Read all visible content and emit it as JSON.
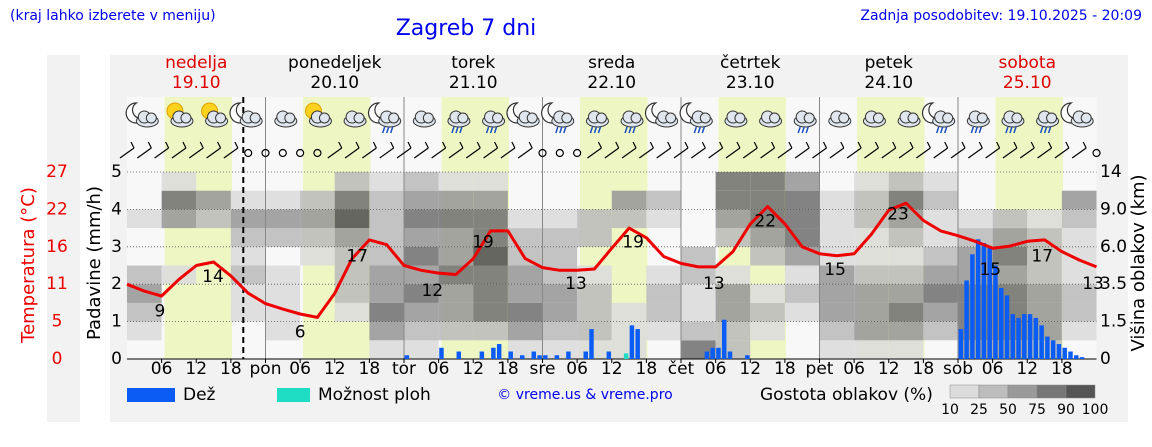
{
  "chart_data": {
    "type": "meteogram",
    "title": "Zagreb 7 dni",
    "location_hint": "(kraj lahko izberete v meniju)",
    "updated": "Zadnja posodobitev: 19.10.2025 - 20:09",
    "credit": "© vreme.us & vreme.pro",
    "days": [
      {
        "name": "nedelja",
        "date": "19.10",
        "color": "#e00000"
      },
      {
        "name": "ponedeljek",
        "date": "20.10",
        "color": "#000000"
      },
      {
        "name": "torek",
        "date": "21.10",
        "color": "#000000"
      },
      {
        "name": "sreda",
        "date": "22.10",
        "color": "#000000"
      },
      {
        "name": "četrtek",
        "date": "23.10",
        "color": "#000000"
      },
      {
        "name": "petek",
        "date": "24.10",
        "color": "#000000"
      },
      {
        "name": "sobota",
        "date": "25.10",
        "color": "#e00000"
      }
    ],
    "xlim": [
      0,
      168
    ],
    "xticks": [
      {
        "value": 6,
        "label": "06"
      },
      {
        "value": 12,
        "label": "12"
      },
      {
        "value": 18,
        "label": "18"
      },
      {
        "value": 24,
        "label": "pon"
      },
      {
        "value": 30,
        "label": "06"
      },
      {
        "value": 36,
        "label": "12"
      },
      {
        "value": 42,
        "label": "18"
      },
      {
        "value": 48,
        "label": "tor"
      },
      {
        "value": 54,
        "label": "06"
      },
      {
        "value": 60,
        "label": "12"
      },
      {
        "value": 66,
        "label": "18"
      },
      {
        "value": 72,
        "label": "sre"
      },
      {
        "value": 78,
        "label": "06"
      },
      {
        "value": 84,
        "label": "12"
      },
      {
        "value": 90,
        "label": "18"
      },
      {
        "value": 96,
        "label": "čet"
      },
      {
        "value": 102,
        "label": "06"
      },
      {
        "value": 108,
        "label": "12"
      },
      {
        "value": 114,
        "label": "18"
      },
      {
        "value": 120,
        "label": "pet"
      },
      {
        "value": 126,
        "label": "06"
      },
      {
        "value": 132,
        "label": "12"
      },
      {
        "value": 138,
        "label": "18"
      },
      {
        "value": 144,
        "label": "sob"
      },
      {
        "value": 150,
        "label": "06"
      },
      {
        "value": 156,
        "label": "12"
      },
      {
        "value": 162,
        "label": "18"
      }
    ],
    "now": 20.15,
    "daylight": [
      [
        6.5,
        18.2
      ],
      [
        30.5,
        42.2
      ],
      [
        54.5,
        66.2
      ],
      [
        78.5,
        90.2
      ],
      [
        102.5,
        114.2
      ],
      [
        126.5,
        138.2
      ],
      [
        150.5,
        162.2
      ]
    ],
    "ylabel": "Padavine (mm/h)",
    "ylim": [
      0,
      5
    ],
    "yticks": [
      0,
      1,
      2,
      3,
      4,
      5
    ],
    "grid": true,
    "series": [
      {
        "name": "Dež",
        "color": "#0a5cf5",
        "x": [
          48,
          54,
          57,
          61,
          63,
          64,
          66,
          68,
          70,
          71,
          72,
          74,
          76,
          79,
          80,
          83,
          87,
          88,
          100,
          101,
          102,
          103,
          104,
          107,
          144,
          145,
          146,
          147,
          148,
          149,
          150,
          151,
          152,
          153,
          154,
          155,
          156,
          157,
          158,
          159,
          160,
          161,
          162,
          163,
          164,
          165
        ],
        "values": [
          0.1,
          0.3,
          0.2,
          0.2,
          0.3,
          0.4,
          0.2,
          0.1,
          0.2,
          0.1,
          0.1,
          0.1,
          0.2,
          0.2,
          0.8,
          0.2,
          0.9,
          0.8,
          0.2,
          0.3,
          0.3,
          1.05,
          0.2,
          0.1,
          0.8,
          2.1,
          2.8,
          3.2,
          3.1,
          3.0,
          2.5,
          1.9,
          1.7,
          1.2,
          1.1,
          1.2,
          1.2,
          1.1,
          0.9,
          0.6,
          0.5,
          0.4,
          0.3,
          0.2,
          0.1,
          0.05
        ]
      },
      {
        "name": "Možnost ploh",
        "color": "#1fdcc4",
        "x": [
          86,
          157,
          158,
          159
        ],
        "values": [
          0.15,
          0.9,
          0.6,
          0.3
        ]
      }
    ],
    "temperature": {
      "label": "Temperatura (°C)",
      "color": "#ee0000",
      "lim": [
        0,
        27
      ],
      "ticks": [
        0,
        {
          "value": 5.4,
          "label": "5"
        },
        {
          "value": 10.8,
          "label": "11"
        },
        {
          "value": 16.2,
          "label": "16"
        },
        {
          "value": 21.6,
          "label": "22"
        },
        27
      ],
      "x": [
        0,
        3,
        6,
        9,
        12,
        15,
        18,
        21,
        24,
        27,
        30,
        33,
        36,
        39,
        42,
        45,
        48,
        51,
        54,
        57,
        60,
        63,
        66,
        69,
        72,
        75,
        78,
        81,
        84,
        87,
        90,
        93,
        96,
        99,
        102,
        105,
        108,
        111,
        114,
        117,
        120,
        123,
        126,
        129,
        132,
        135,
        138,
        141,
        144,
        147,
        150,
        153,
        156,
        159,
        162,
        165,
        168
      ],
      "values": [
        10.8,
        9.8,
        9.1,
        11.5,
        13.5,
        14.0,
        12.0,
        9.5,
        8.0,
        7.2,
        6.5,
        6.0,
        9.5,
        14.5,
        17.2,
        16.5,
        13.5,
        12.8,
        12.4,
        12.2,
        14.5,
        18.5,
        18.5,
        14.5,
        13.2,
        12.8,
        12.8,
        13.0,
        16.0,
        18.9,
        17.5,
        14.8,
        13.8,
        13.3,
        13.3,
        15.5,
        19.5,
        22.0,
        19.5,
        16.2,
        15.2,
        14.9,
        15.2,
        18.0,
        21.5,
        22.5,
        20.0,
        18.5,
        17.8,
        17.0,
        16.0,
        16.3,
        17.0,
        17.2,
        15.5,
        14.3,
        13.3
      ],
      "labels": {
        "x": [
          5.7,
          14.9,
          30,
          39.9,
          52.9,
          61.7,
          77.8,
          87.7,
          101.7,
          110.6,
          122.7,
          133.6,
          149.6,
          158.6,
          167.4
        ],
        "values": [
          9,
          14,
          6,
          17,
          12,
          19,
          13,
          19,
          13,
          22,
          15,
          23,
          15,
          17,
          13
        ]
      }
    },
    "clouds": {
      "label": "Višina oblakov (km)",
      "legend_title": "Gostota oblakov (%)",
      "lim": [
        0,
        14
      ],
      "ticks": [
        0,
        1.5,
        3.5,
        {
          "value": 6,
          "label": "6.0"
        },
        {
          "value": 9,
          "label": "9.0"
        },
        14
      ],
      "levels": [
        0,
        0.75,
        1.5,
        2.5,
        3.5,
        4.75,
        6,
        7.5,
        9,
        11.5,
        14
      ],
      "x": [
        0,
        6,
        12,
        18,
        24,
        30,
        36,
        42,
        48,
        54,
        60,
        66,
        72,
        78,
        84,
        90,
        96,
        102,
        108,
        114,
        120,
        126,
        132,
        138,
        144,
        150,
        156,
        162,
        168
      ],
      "density": [
        [
          0,
          10,
          25,
          50,
          25,
          0,
          0,
          10,
          0,
          0
        ],
        [
          0,
          0,
          0,
          0,
          10,
          0,
          0,
          50,
          75,
          10
        ],
        [
          0,
          0,
          0,
          0,
          0,
          0,
          0,
          25,
          50,
          0
        ],
        [
          0,
          0,
          10,
          10,
          25,
          10,
          25,
          50,
          10,
          0
        ],
        [
          0,
          10,
          10,
          10,
          10,
          0,
          25,
          50,
          10,
          0
        ],
        [
          0,
          0,
          0,
          0,
          0,
          10,
          25,
          50,
          25,
          0
        ],
        [
          0,
          0,
          10,
          25,
          25,
          25,
          50,
          90,
          75,
          25
        ],
        [
          10,
          50,
          75,
          50,
          50,
          25,
          25,
          25,
          25,
          10
        ],
        [
          10,
          25,
          50,
          75,
          50,
          75,
          50,
          75,
          50,
          25
        ],
        [
          0,
          25,
          50,
          50,
          75,
          50,
          50,
          75,
          50,
          10
        ],
        [
          0,
          25,
          75,
          75,
          75,
          90,
          75,
          75,
          50,
          10
        ],
        [
          10,
          50,
          75,
          50,
          50,
          25,
          25,
          10,
          0,
          0
        ],
        [
          10,
          25,
          50,
          50,
          25,
          25,
          25,
          10,
          0,
          0
        ],
        [
          10,
          25,
          25,
          25,
          10,
          0,
          25,
          25,
          0,
          0
        ],
        [
          10,
          10,
          10,
          0,
          0,
          0,
          0,
          25,
          50,
          0
        ],
        [
          0,
          10,
          25,
          25,
          10,
          0,
          0,
          10,
          25,
          0
        ],
        [
          75,
          25,
          10,
          10,
          25,
          25,
          0,
          0,
          0,
          0
        ],
        [
          25,
          25,
          50,
          50,
          10,
          0,
          25,
          50,
          75,
          75
        ],
        [
          0,
          10,
          25,
          10,
          0,
          25,
          50,
          75,
          75,
          75
        ],
        [
          0,
          0,
          10,
          25,
          10,
          50,
          75,
          75,
          75,
          50
        ],
        [
          10,
          25,
          50,
          50,
          50,
          10,
          10,
          10,
          10,
          0
        ],
        [
          10,
          50,
          50,
          50,
          25,
          10,
          10,
          25,
          25,
          10
        ],
        [
          10,
          50,
          75,
          50,
          25,
          10,
          25,
          50,
          75,
          25
        ],
        [
          0,
          25,
          50,
          75,
          50,
          25,
          10,
          10,
          25,
          10
        ],
        [
          50,
          75,
          75,
          75,
          50,
          50,
          25,
          10,
          0,
          0
        ],
        [
          50,
          75,
          75,
          75,
          50,
          75,
          50,
          25,
          0,
          0
        ],
        [
          25,
          50,
          50,
          50,
          25,
          25,
          25,
          10,
          0,
          0
        ],
        [
          0,
          10,
          25,
          25,
          10,
          10,
          10,
          25,
          50,
          0
        ]
      ],
      "scale": {
        "ticks": [
          10,
          25,
          50,
          75,
          90,
          100
        ],
        "colors": [
          "#dcdcdc",
          "#bdbdbd",
          "#9a9a9a",
          "#767676",
          "#555555"
        ]
      }
    }
  }
}
